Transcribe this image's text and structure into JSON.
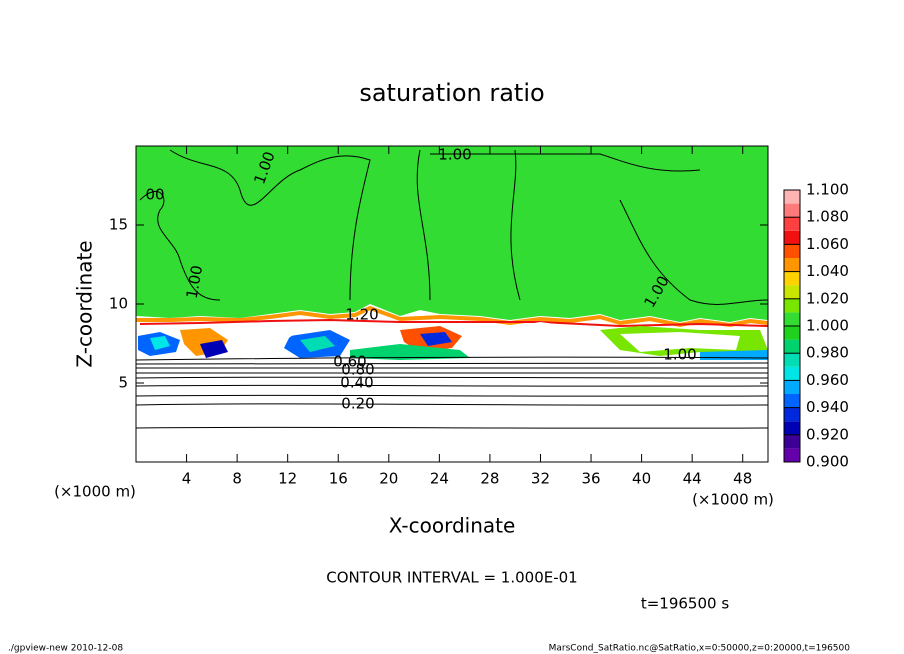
{
  "chart_data": {
    "type": "contour",
    "title": "saturation ratio",
    "x_label": "X-coordinate",
    "y_label": "Z-coordinate",
    "x_unit": "(×1000 m)",
    "y_unit": "(×1000 m)",
    "xlim": [
      0,
      50
    ],
    "ylim": [
      0,
      20
    ],
    "xticks": [
      4,
      8,
      12,
      16,
      20,
      24,
      28,
      32,
      36,
      40,
      44,
      48
    ],
    "yticks": [
      5,
      10,
      15
    ],
    "contour_labels": [
      "1.00",
      "1.00",
      "00",
      "1.00",
      "1.00",
      "1.20",
      "0.80",
      "0.60",
      "0.40",
      "0.20",
      "1.00"
    ],
    "contour_interval": "CONTOUR INTERVAL = 1.000E-01",
    "time": "t=196500 s",
    "colorbar": {
      "lim": [
        0.9,
        1.1
      ],
      "colors": [
        "#6400aa",
        "#3c0096",
        "#0000b4",
        "#0028dc",
        "#0064ff",
        "#00aaff",
        "#00e6e6",
        "#00dcb4",
        "#00d26e",
        "#1ed21e",
        "#32dc32",
        "#78e600",
        "#c8e600",
        "#ffd200",
        "#ff9600",
        "#ff5000",
        "#f01010",
        "#ff4040",
        "#ff7a7a",
        "#ffb4b4"
      ],
      "ticks": [
        {
          "value": 0.9,
          "label": "0.900"
        },
        {
          "value": 0.92,
          "label": "0.920"
        },
        {
          "value": 0.94,
          "label": "0.940"
        },
        {
          "value": 0.96,
          "label": "0.960"
        },
        {
          "value": 0.98,
          "label": "0.980"
        },
        {
          "value": 1.0,
          "label": "1.000"
        },
        {
          "value": 1.02,
          "label": "1.020"
        },
        {
          "value": 1.04,
          "label": "1.040"
        },
        {
          "value": 1.06,
          "label": "1.060"
        },
        {
          "value": 1.08,
          "label": "1.080"
        },
        {
          "value": 1.1,
          "label": "1.100"
        }
      ]
    }
  },
  "footer": {
    "left": "./gpview-new  2010-12-08",
    "right": "MarsCond_SatRatio.nc@SatRatio,x=0:50000,z=0:20000,t=196500"
  }
}
